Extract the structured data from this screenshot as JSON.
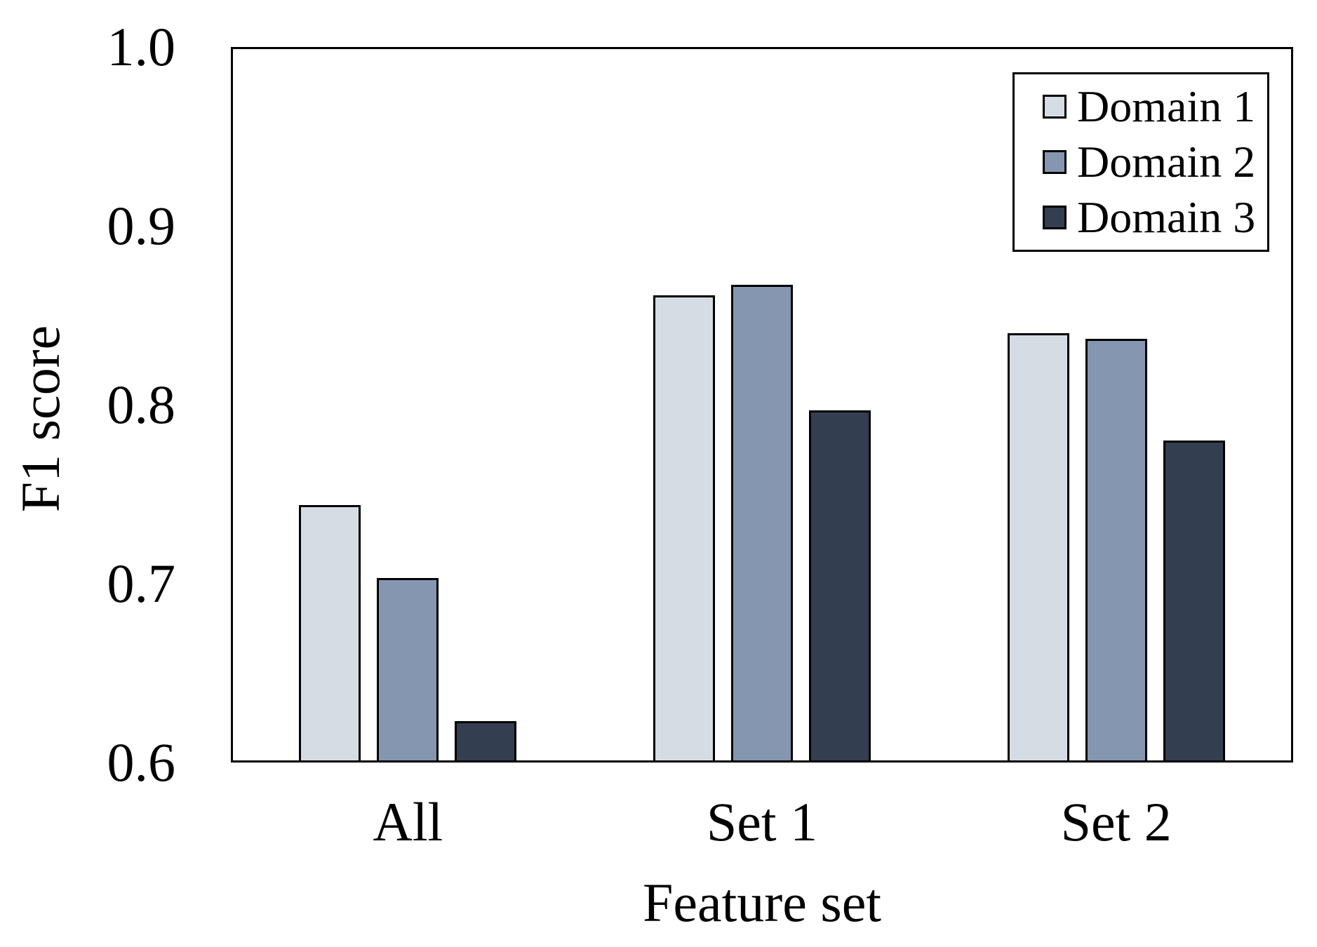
{
  "chart_data": {
    "type": "bar",
    "title": "",
    "xlabel": "Feature set",
    "ylabel": "F1 score",
    "categories": [
      "All",
      "Set 1",
      "Set 2"
    ],
    "series": [
      {
        "name": "Domain 1",
        "color": "#d6dce4",
        "values": [
          0.744,
          0.861,
          0.84
        ]
      },
      {
        "name": "Domain 2",
        "color": "#8496b0",
        "values": [
          0.703,
          0.867,
          0.837
        ]
      },
      {
        "name": "Domain 3",
        "color": "#333f50",
        "values": [
          0.623,
          0.797,
          0.78
        ]
      }
    ],
    "ylim": [
      0.6,
      1.0
    ],
    "ytick_labels": [
      "1.0",
      "0.9",
      "0.8",
      "0.7",
      "0.6"
    ],
    "yticks": [
      1.0,
      0.9,
      0.8,
      0.7,
      0.6
    ],
    "grid": false,
    "legend_position": "top-right",
    "bar_outline_color": "#000000",
    "background_color": "#ffffff",
    "text_color": "#000000"
  }
}
